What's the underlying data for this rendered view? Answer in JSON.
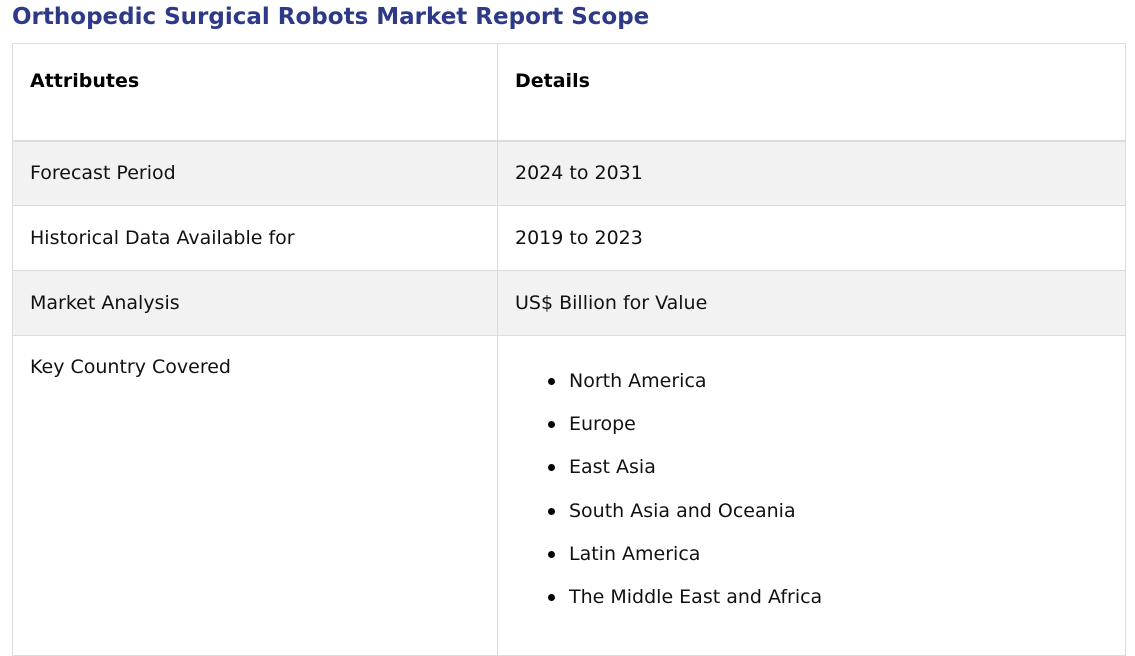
{
  "page": {
    "title": "Orthopedic Surgical Robots Market Report Scope"
  },
  "table": {
    "headers": {
      "attributes": "Attributes",
      "details": "Details"
    },
    "rows": [
      {
        "attribute": "Forecast Period",
        "detail": "2024 to 2031"
      },
      {
        "attribute": "Historical Data Available for",
        "detail": "2019 to 2023"
      },
      {
        "attribute": "Market Analysis",
        "detail": "US$ Billion for Value"
      }
    ],
    "key_country": {
      "attribute": "Key Country Covered",
      "regions": [
        "North America",
        "Europe",
        "East Asia",
        "South Asia and Oceania",
        "Latin America",
        "The Middle East and Africa"
      ]
    }
  },
  "colors": {
    "title": "#2e3a87",
    "shaded_row": "#f2f2f2",
    "border": "#dcdcdc"
  }
}
